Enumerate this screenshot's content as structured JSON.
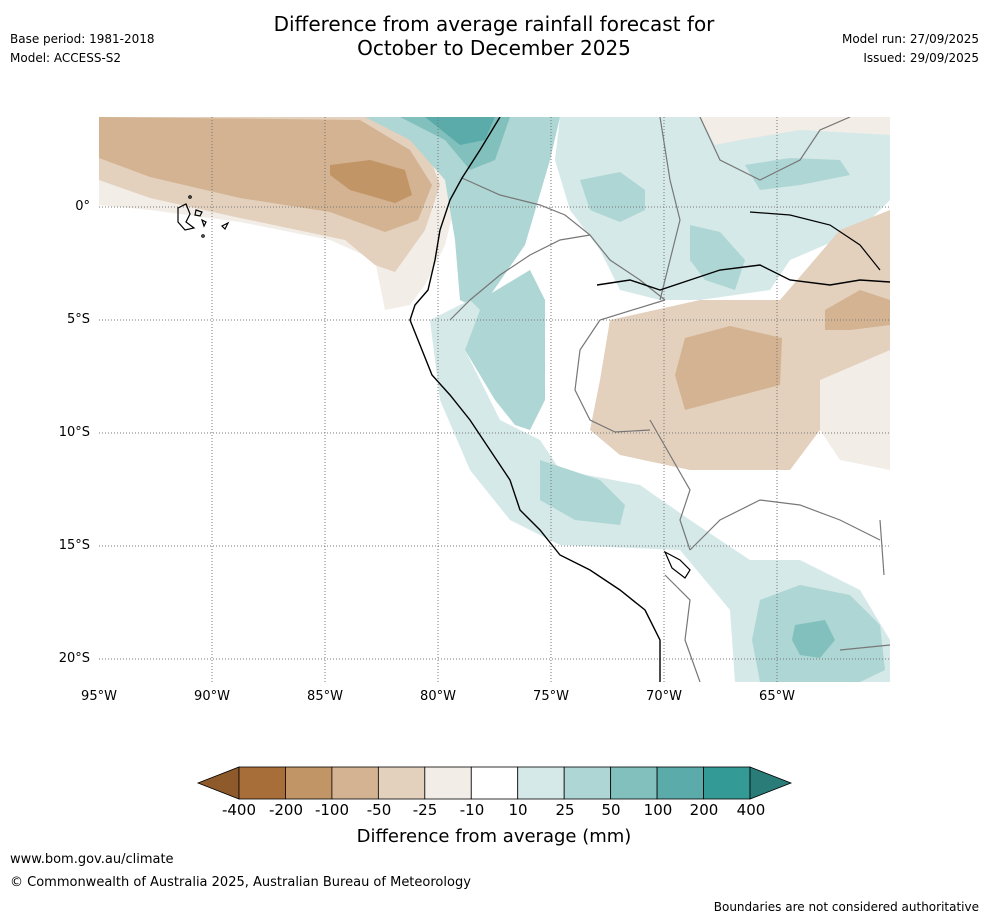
{
  "header": {
    "title_line1": "Difference from average rainfall forecast for",
    "title_line2": "October to December 2025",
    "base_period": "Base period: 1981-2018",
    "model": "Model: ACCESS-S2",
    "model_run": "Model run: 27/09/2025",
    "issued": "Issued: 29/09/2025"
  },
  "map": {
    "lon_range": [
      -95,
      -60
    ],
    "lat_range": [
      -21,
      4
    ],
    "lat_labels": [
      "0°",
      "5°S",
      "10°S",
      "15°S",
      "20°S"
    ],
    "lon_labels": [
      "95°W",
      "90°W",
      "85°W",
      "80°W",
      "75°W",
      "70°W",
      "65°W"
    ],
    "regions": [
      {
        "name": "tongue-dry-25",
        "color": "#f2ede7"
      },
      {
        "name": "tongue-dry-50",
        "color": "#e3d0bd"
      },
      {
        "name": "tongue-dry-100",
        "color": "#d3b391"
      },
      {
        "name": "tongue-dry-200",
        "color": "#c19566"
      },
      {
        "name": "colombia-wet",
        "color": "#aed6d4"
      },
      {
        "name": "coast-wet",
        "color": "#aed6d4"
      },
      {
        "name": "amazon-dry",
        "color": "#e3d0bd"
      },
      {
        "name": "bolivia-wet",
        "color": "#aed6d4"
      }
    ]
  },
  "colorbar": {
    "labels": [
      "-400",
      "-200",
      "-100",
      "-50",
      "-25",
      "-10",
      "10",
      "25",
      "50",
      "100",
      "200",
      "400"
    ],
    "colors": [
      "#a76e3a",
      "#c19566",
      "#d3b391",
      "#e3d0bd",
      "#f2ede7",
      "#ffffff",
      "#d4e9e8",
      "#aed6d4",
      "#82c0bd",
      "#5babaa",
      "#349a96"
    ],
    "low_extend_color": "#8e5a2c",
    "high_extend_color": "#2a7c79",
    "title": "Difference from average (mm)"
  },
  "footer": {
    "url": "www.bom.gov.au/climate",
    "copyright": "© Commonwealth of Australia 2025, Australian Bureau of Meteorology",
    "disclaimer": "Boundaries are not considered authoritative"
  }
}
